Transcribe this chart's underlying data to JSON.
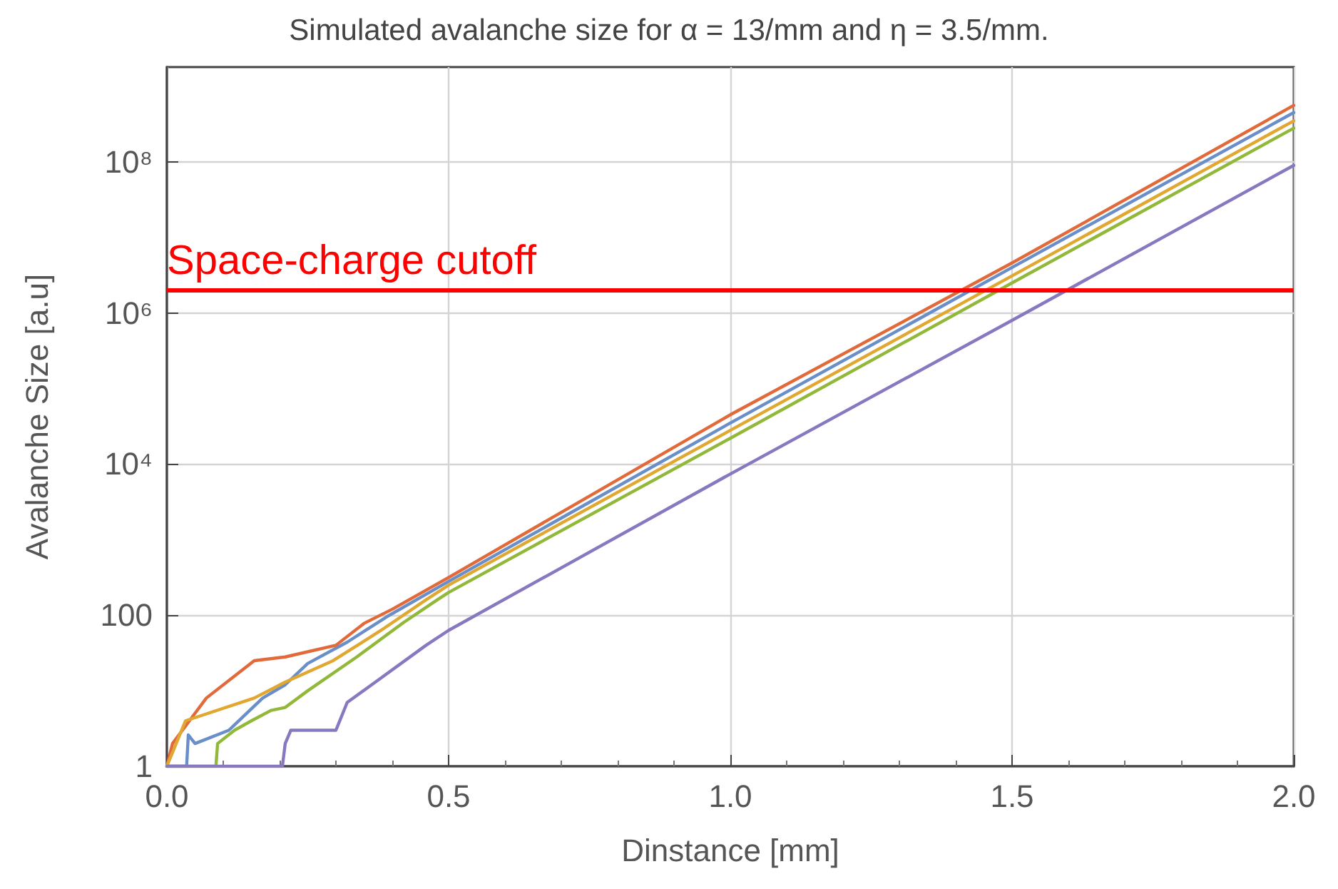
{
  "chart_data": {
    "type": "line",
    "title": "Simulated avalanche size for α = 13/mm and η = 3.5/mm.",
    "xlabel": "Dinstance [mm]",
    "ylabel": "Avalanche Size [a.u]",
    "log": "y",
    "grid": true,
    "marker": "none",
    "line_style": "solid",
    "xlim": [
      0,
      2
    ],
    "xticks": [
      {
        "value": 0,
        "label": "0.0"
      },
      0.5,
      {
        "value": 1,
        "label": "1.0"
      },
      1.5,
      {
        "value": 2,
        "label": "2.0"
      }
    ],
    "ylim": [
      1,
      1800000000
    ],
    "yticks": [
      1,
      100,
      {
        "value": 10000,
        "label": "10⁴"
      },
      {
        "value": 1000000,
        "label": "10⁶"
      },
      {
        "value": 100000000,
        "label": "10⁸"
      }
    ],
    "ref_lines": [
      {
        "axis": "y",
        "value": 2000000,
        "label": "Space-charge cutoff",
        "color": "#ff0000",
        "line_style": "solid"
      }
    ],
    "series": [
      {
        "color": "#6a8fc8",
        "x": [
          0,
          0.035,
          0.038,
          0.05,
          0.11,
          0.17,
          0.21,
          0.25,
          0.32,
          0.395,
          0.5,
          1.0,
          1.5,
          2.0
        ],
        "values": [
          1,
          1,
          2.6,
          2,
          3,
          8,
          12,
          23,
          44,
          100,
          280,
          35000,
          4000000,
          450000000
        ]
      },
      {
        "color": "#e26a3a",
        "x": [
          0,
          0.01,
          0.04,
          0.07,
          0.155,
          0.21,
          0.3,
          0.35,
          0.4,
          0.5,
          1.0,
          1.5,
          2.0
        ],
        "values": [
          1,
          2,
          4,
          8,
          25,
          28,
          40,
          78,
          120,
          316,
          45000,
          4600000,
          560000000
        ]
      },
      {
        "color": "#e0a830",
        "x": [
          0,
          0.033,
          0.155,
          0.21,
          0.295,
          0.38,
          0.46,
          0.5,
          1.0,
          1.5,
          2.0
        ],
        "values": [
          1,
          4,
          8,
          13,
          25,
          63,
          160,
          250,
          28000,
          3100000,
          350000000
        ]
      },
      {
        "color": "#92b83a",
        "x": [
          0,
          0.087,
          0.09,
          0.12,
          0.15,
          0.185,
          0.21,
          0.25,
          0.337,
          0.42,
          0.48,
          0.5,
          1.0,
          1.5,
          2.0
        ],
        "values": [
          1,
          1,
          2,
          3,
          4,
          5.5,
          6,
          10,
          28,
          80,
          160,
          200,
          22000,
          2500000,
          280000000
        ]
      },
      {
        "color": "#8878c0",
        "x": [
          0,
          0.205,
          0.21,
          0.22,
          0.3,
          0.32,
          0.37,
          0.46,
          0.5,
          1.0,
          1.5,
          2.0
        ],
        "values": [
          1,
          1,
          2,
          3,
          3,
          7,
          13,
          40,
          63,
          7400,
          800000,
          90000000
        ]
      }
    ]
  }
}
